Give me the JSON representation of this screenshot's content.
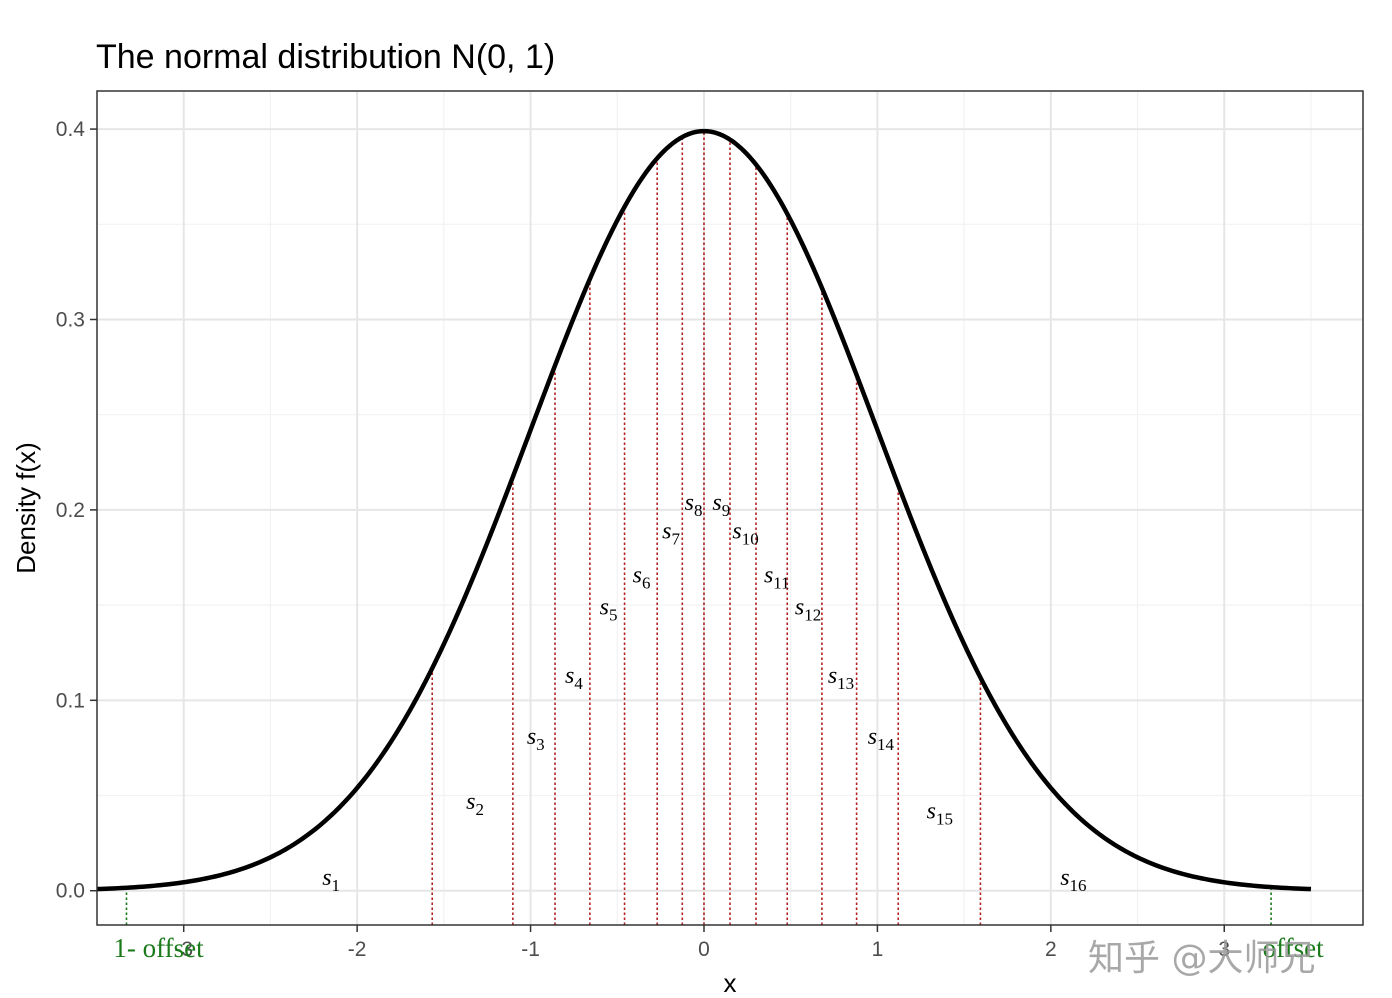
{
  "chart_data": {
    "type": "line",
    "title": "The normal distribution N(0, 1)",
    "xlabel": "x",
    "ylabel": "Density f(x)",
    "xlim": [
      -3.5,
      3.8
    ],
    "ylim": [
      -0.018,
      0.42
    ],
    "x_ticks": [
      -3,
      -2,
      -1,
      0,
      1,
      2,
      3
    ],
    "x_tick_labels": [
      "-3",
      "-2",
      "-1",
      "0",
      "1",
      "2",
      "3"
    ],
    "y_ticks": [
      0.0,
      0.1,
      0.2,
      0.3,
      0.4
    ],
    "y_tick_labels": [
      "0.0",
      "0.1",
      "0.2",
      "0.3",
      "0.4"
    ],
    "grid": true,
    "series": [
      {
        "curve": "normal density",
        "mean": 0,
        "sd": 1,
        "x_range": [
          -3.5,
          3.5
        ]
      }
    ],
    "cut_points": [
      -1.567,
      -1.102,
      -0.859,
      -0.658,
      -0.458,
      -0.27,
      -0.125,
      0.0,
      0.15,
      0.3,
      0.48,
      0.68,
      0.88,
      1.12,
      1.594
    ],
    "offset_lines": [
      {
        "x": -3.33,
        "label": "1- offset"
      },
      {
        "x": 3.27,
        "label": "offset"
      }
    ],
    "segment_labels": [
      {
        "base": "s",
        "sub": "1",
        "x": -2.15,
        "y": 0.003
      },
      {
        "base": "s",
        "sub": "2",
        "x": -1.32,
        "y": 0.043
      },
      {
        "base": "s",
        "sub": "3",
        "x": -0.97,
        "y": 0.077
      },
      {
        "base": "s",
        "sub": "4",
        "x": -0.75,
        "y": 0.109
      },
      {
        "base": "s",
        "sub": "5",
        "x": -0.55,
        "y": 0.145
      },
      {
        "base": "s",
        "sub": "6",
        "x": -0.36,
        "y": 0.162
      },
      {
        "base": "s",
        "sub": "7",
        "x": -0.19,
        "y": 0.185
      },
      {
        "base": "s",
        "sub": "8",
        "x": -0.06,
        "y": 0.2
      },
      {
        "base": "s",
        "sub": "9",
        "x": 0.1,
        "y": 0.2
      },
      {
        "base": "s",
        "sub": "10",
        "x": 0.24,
        "y": 0.185
      },
      {
        "base": "s",
        "sub": "11",
        "x": 0.42,
        "y": 0.162
      },
      {
        "base": "s",
        "sub": "12",
        "x": 0.6,
        "y": 0.145
      },
      {
        "base": "s",
        "sub": "13",
        "x": 0.79,
        "y": 0.109
      },
      {
        "base": "s",
        "sub": "14",
        "x": 1.02,
        "y": 0.077
      },
      {
        "base": "s",
        "sub": "15",
        "x": 1.36,
        "y": 0.038
      },
      {
        "base": "s",
        "sub": "16",
        "x": 2.13,
        "y": 0.003
      }
    ]
  },
  "colors": {
    "curve": "#000000",
    "cut_lines": "#b22222",
    "offset_lines": "#1a7a1a",
    "grid_major": "#e6e6e6",
    "grid_minor": "#f2f2f2",
    "panel_border": "#333333"
  },
  "watermark": "知乎 @大师兄"
}
